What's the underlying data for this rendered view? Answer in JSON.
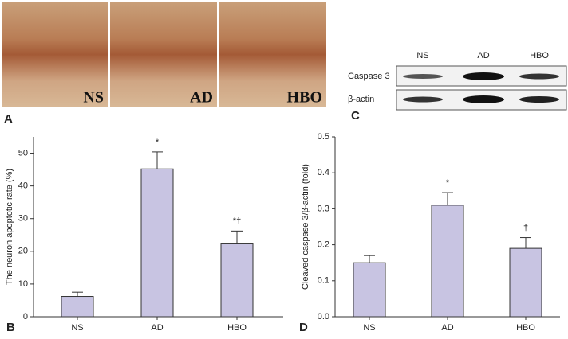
{
  "panel_a": {
    "label": "A",
    "images": [
      "NS",
      "AD",
      "HBO"
    ]
  },
  "panel_c": {
    "label": "C",
    "lanes": [
      "NS",
      "AD",
      "HBO"
    ],
    "rows": [
      "Caspase 3",
      "β-actin"
    ]
  },
  "chart_data": [
    {
      "type": "bar",
      "label": "B",
      "ylabel": "The neuron apoptotic rate (%)",
      "categories": [
        "NS",
        "AD",
        "HBO"
      ],
      "values": [
        6.2,
        45.2,
        22.5
      ],
      "errors": [
        1.3,
        5.2,
        3.7
      ],
      "annotations": [
        null,
        "*",
        "*†"
      ],
      "color": "#c8c4e2",
      "ylim": [
        0,
        55
      ],
      "yticks": [
        0,
        10,
        20,
        30,
        40,
        50
      ]
    },
    {
      "type": "bar",
      "label": "D",
      "ylabel": "Cleaved caspase 3/β-actin (fold)",
      "categories": [
        "NS",
        "AD",
        "HBO"
      ],
      "values": [
        0.15,
        0.31,
        0.19
      ],
      "errors": [
        0.02,
        0.035,
        0.03
      ],
      "annotations": [
        null,
        "*",
        "†"
      ],
      "color": "#c8c4e2",
      "ylim": [
        0,
        0.5
      ],
      "yticks": [
        {
          "value": 0,
          "label": "0.0"
        },
        0.1,
        0.2,
        0.3,
        0.4,
        0.5
      ]
    }
  ]
}
